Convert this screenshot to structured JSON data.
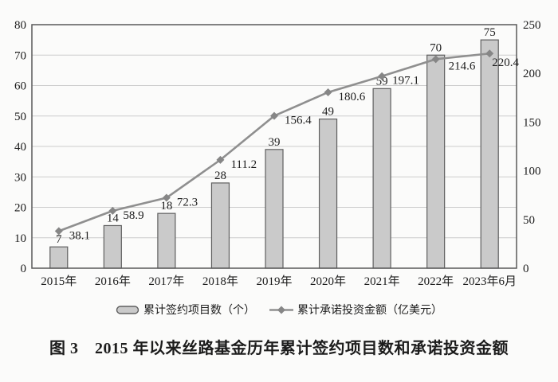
{
  "figure": {
    "caption": "图 3　2015 年以来丝路基金历年累计签约项目数和承诺投资金额"
  },
  "legend": {
    "bars_label": "累计签约项目数（个）",
    "line_label": "累计承诺投资金额（亿美元）"
  },
  "colors": {
    "bar_fill": "#cacaca",
    "bar_border": "#5f5f5f",
    "line": "#8f8f8f",
    "marker": "#868686",
    "grid": "#cccccc",
    "plot_border": "#595959",
    "text": "#1c1c1c"
  },
  "chart_data": {
    "type": "bar",
    "subtype": "bar+line combo, dual axis",
    "title": "图 3　2015 年以来丝路基金历年累计签约项目数和承诺投资金额",
    "categories": [
      "2015年",
      "2016年",
      "2017年",
      "2018年",
      "2019年",
      "2020年",
      "2021年",
      "2022年",
      "2023年6月"
    ],
    "series": [
      {
        "name": "累计签约项目数（个）",
        "type": "bar",
        "axis": "left",
        "values": [
          7,
          14,
          18,
          28,
          39,
          49,
          59,
          70,
          75
        ]
      },
      {
        "name": "累计承诺投资金额（亿美元）",
        "type": "line",
        "axis": "right",
        "marker": "diamond",
        "values": [
          38.1,
          58.9,
          72.3,
          111.2,
          156.4,
          180.6,
          197.1,
          214.6,
          220.4
        ]
      }
    ],
    "left_axis": {
      "min": 0,
      "max": 80,
      "ticks": [
        0,
        10,
        20,
        30,
        40,
        50,
        60,
        70,
        80
      ]
    },
    "right_axis": {
      "min": 0,
      "max": 250,
      "ticks": [
        0,
        50,
        100,
        150,
        200,
        250
      ]
    },
    "grid": true,
    "legend_position": "bottom",
    "xlabel": "",
    "ylabel_left": "累计签约项目数（个）",
    "ylabel_right": "累计承诺投资金额（亿美元）"
  }
}
